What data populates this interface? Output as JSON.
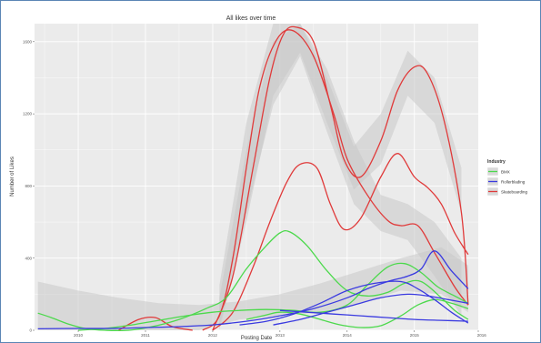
{
  "chart_data": {
    "type": "line",
    "title": "All likes over time",
    "xlabel": "Posting Date",
    "ylabel": "Number of Likes",
    "xlim": [
      2009.35,
      2015.95
    ],
    "ylim": [
      0,
      1700
    ],
    "x_ticks": [
      2010,
      2011,
      2012,
      2013,
      2014,
      2015,
      2016
    ],
    "x_tick_labels": [
      "2010",
      "2011",
      "2012",
      "2013",
      "2014",
      "2015",
      "2016"
    ],
    "y_ticks": [
      0,
      400,
      800,
      1200,
      1600
    ],
    "y_tick_labels": [
      "0",
      "400",
      "800",
      "1200",
      "1600"
    ],
    "grid": true,
    "legend": {
      "title": "Industry",
      "position": "right",
      "entries": [
        "BMX",
        "Rollerblading",
        "Skateboarding"
      ]
    },
    "colors": {
      "BMX": "#4cd94c",
      "Rollerblading": "#3a3ae0",
      "Skateboarding": "#e03a3a",
      "panel_background": "#ebebeb",
      "grid": "#ffffff",
      "ribbon": "#c8c8c8"
    },
    "series": [
      {
        "name": "Skateboarding",
        "curves": [
          {
            "x": [
              2010.6,
              2010.9,
              2011.15,
              2011.4,
              2011.7
            ],
            "y": [
              0,
              60,
              70,
              20,
              0
            ]
          },
          {
            "x": [
              2011.85,
              2012.1,
              2012.3,
              2012.5,
              2012.7,
              2012.95,
              2013.2,
              2013.5,
              2013.8,
              2014.0,
              2014.3,
              2014.6,
              2014.8,
              2015.05,
              2015.3,
              2015.6,
              2015.8
            ],
            "y": [
              0,
              80,
              400,
              900,
              1350,
              1610,
              1660,
              1520,
              1200,
              950,
              750,
              610,
              580,
              580,
              430,
              240,
              140
            ]
          },
          {
            "x": [
              2012.0,
              2012.3,
              2012.6,
              2012.85,
              2013.05,
              2013.25,
              2013.5,
              2013.75,
              2013.95,
              2014.2,
              2014.5,
              2014.75,
              2015.0,
              2015.2,
              2015.45,
              2015.7,
              2015.8
            ],
            "y": [
              0,
              300,
              900,
              1400,
              1640,
              1680,
              1600,
              1250,
              950,
              850,
              1050,
              1330,
              1460,
              1420,
              1150,
              650,
              140
            ]
          },
          {
            "x": [
              2012.0,
              2012.3,
              2012.6,
              2012.85,
              2013.1,
              2013.3,
              2013.55,
              2013.75,
              2013.95,
              2014.2,
              2014.5,
              2014.75,
              2015.0,
              2015.2,
              2015.4,
              2015.6,
              2015.8
            ],
            "y": [
              0,
              100,
              350,
              600,
              820,
              920,
              900,
              700,
              560,
              620,
              850,
              980,
              850,
              790,
              700,
              540,
              420
            ]
          }
        ]
      },
      {
        "name": "BMX",
        "curves": [
          {
            "x": [
              2009.4,
              2009.6,
              2009.85,
              2010.1,
              2010.4,
              2010.75,
              2011.1,
              2011.5,
              2011.9,
              2012.2,
              2012.5,
              2012.8,
              2013.0,
              2013.15,
              2013.4,
              2013.7,
              2014.0,
              2014.3,
              2014.6,
              2014.85,
              2015.1,
              2015.4,
              2015.6,
              2015.8
            ],
            "y": [
              95,
              70,
              35,
              10,
              0,
              0,
              20,
              60,
              120,
              180,
              340,
              470,
              540,
              545,
              470,
              330,
              220,
              190,
              210,
              260,
              270,
              180,
              110,
              60
            ]
          },
          {
            "x": [
              2010.0,
              2010.4,
              2010.8,
              2011.2,
              2011.6,
              2012.0,
              2012.4,
              2012.8,
              2013.2,
              2013.6,
              2014.0,
              2014.3,
              2014.6,
              2014.85,
              2015.1,
              2015.35,
              2015.6,
              2015.8
            ],
            "y": [
              0,
              10,
              30,
              55,
              80,
              100,
              110,
              115,
              110,
              100,
              140,
              250,
              350,
              370,
              320,
              240,
              190,
              150
            ]
          },
          {
            "x": [
              2012.5,
              2012.8,
              2013.0,
              2013.3,
              2013.6,
              2013.9,
              2014.2,
              2014.5,
              2014.8,
              2015.05,
              2015.3,
              2015.55,
              2015.8
            ],
            "y": [
              60,
              85,
              100,
              90,
              60,
              30,
              15,
              25,
              80,
              140,
              170,
              150,
              120
            ]
          }
        ]
      },
      {
        "name": "Rollerblading",
        "curves": [
          {
            "x": [
              2009.4,
              2010.0,
              2010.5,
              2011.0,
              2011.5,
              2012.0,
              2012.5,
              2013.0,
              2013.5,
              2014.0,
              2014.3,
              2014.6,
              2014.9,
              2015.1,
              2015.3,
              2015.55,
              2015.8
            ],
            "y": [
              8,
              10,
              10,
              15,
              20,
              30,
              50,
              80,
              120,
              180,
              230,
              270,
              300,
              340,
              440,
              330,
              230
            ]
          },
          {
            "x": [
              2012.4,
              2012.8,
              2013.2,
              2013.6,
              2014.0,
              2014.4,
              2014.8,
              2015.05,
              2015.3,
              2015.55,
              2015.8
            ],
            "y": [
              30,
              50,
              90,
              150,
              220,
              260,
              270,
              230,
              170,
              100,
              40
            ]
          },
          {
            "x": [
              2012.9,
              2013.3,
              2013.7,
              2014.1,
              2014.5,
              2014.9,
              2015.2,
              2015.5,
              2015.8
            ],
            "y": [
              30,
              60,
              100,
              140,
              180,
              200,
              190,
              170,
              150
            ]
          },
          {
            "x": [
              2013.0,
              2013.4,
              2013.8,
              2014.2,
              2014.6,
              2015.0,
              2015.4,
              2015.8
            ],
            "y": [
              110,
              100,
              90,
              80,
              70,
              60,
              55,
              50
            ]
          }
        ]
      }
    ],
    "ribbons": [
      {
        "x": [
          2012.1,
          2012.5,
          2012.9,
          2013.3,
          2013.7,
          2014.1,
          2014.5,
          2014.9,
          2015.3,
          2015.7
        ],
        "lower": [
          20,
          650,
          1250,
          1520,
          1100,
          700,
          550,
          500,
          300,
          80
        ],
        "upper": [
          250,
          1150,
          1700,
          1700,
          1450,
          1050,
          750,
          700,
          600,
          400
        ]
      },
      {
        "x": [
          2012.1,
          2012.5,
          2012.9,
          2013.3,
          2013.7,
          2014.1,
          2014.5,
          2014.9,
          2015.3,
          2015.7
        ],
        "lower": [
          0,
          600,
          1300,
          1540,
          1150,
          780,
          920,
          1300,
          1150,
          650
        ],
        "upper": [
          180,
          1000,
          1600,
          1700,
          1400,
          1020,
          1200,
          1550,
          1400,
          900
        ]
      },
      {
        "x": [
          2009.4,
          2010.0,
          2010.6,
          2011.2,
          2011.8,
          2012.4,
          2013.0,
          2013.6,
          2014.2,
          2014.8,
          2015.4,
          2015.8
        ],
        "lower": [
          0,
          0,
          0,
          0,
          0,
          60,
          80,
          100,
          150,
          220,
          200,
          100
        ],
        "upper": [
          270,
          220,
          180,
          150,
          140,
          160,
          200,
          260,
          330,
          400,
          460,
          360
        ]
      }
    ]
  }
}
